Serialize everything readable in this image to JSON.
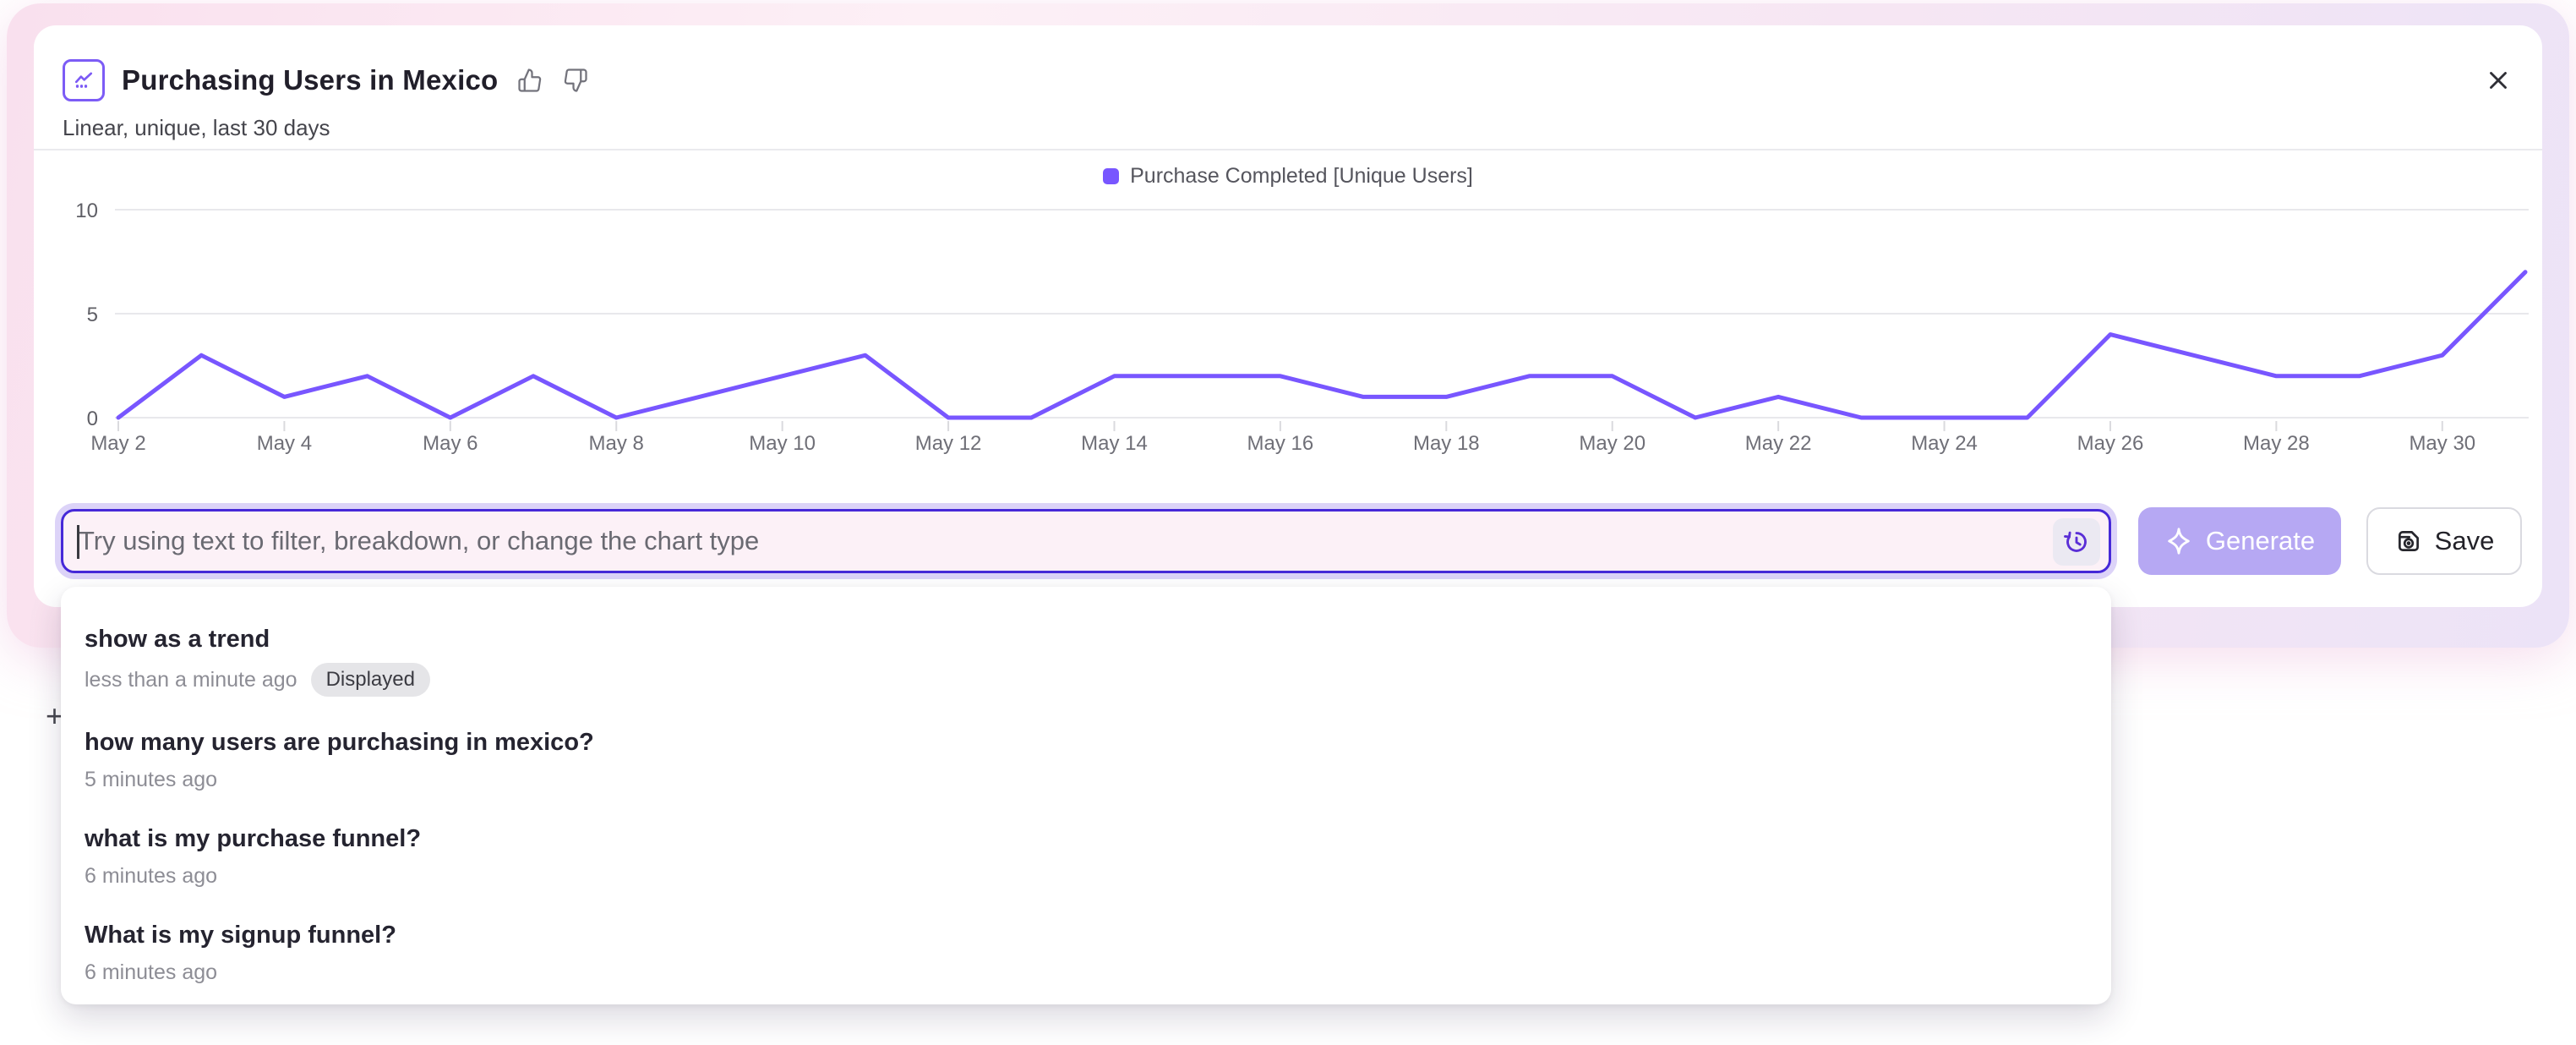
{
  "header": {
    "title": "Purchasing Users in Mexico",
    "subtitle": "Linear, unique, last 30 days"
  },
  "legend": {
    "label": "Purchase Completed [Unique Users]",
    "color": "#7856ff"
  },
  "chart_data": {
    "type": "line",
    "title": "Purchasing Users in Mexico",
    "x_labels": [
      "May 2",
      "May 3",
      "May 4",
      "May 5",
      "May 6",
      "May 7",
      "May 8",
      "May 9",
      "May 10",
      "May 11",
      "May 12",
      "May 13",
      "May 14",
      "May 15",
      "May 16",
      "May 17",
      "May 18",
      "May 19",
      "May 20",
      "May 21",
      "May 22",
      "May 23",
      "May 24",
      "May 25",
      "May 26",
      "May 27",
      "May 28",
      "May 29",
      "May 30",
      "May 31"
    ],
    "tick_every": 2,
    "y_ticks": [
      0,
      5,
      10
    ],
    "ylim": [
      0,
      10
    ],
    "grid": true,
    "legend_position": "top-center",
    "series": [
      {
        "name": "Purchase Completed [Unique Users]",
        "color": "#7856ff",
        "values": [
          0,
          3,
          1,
          2,
          0,
          2,
          0,
          1,
          2,
          3,
          0,
          0,
          2,
          2,
          2,
          1,
          1,
          2,
          2,
          0,
          1,
          0,
          0,
          0,
          4,
          3,
          2,
          2,
          3,
          7
        ]
      }
    ]
  },
  "prompt_bar": {
    "placeholder": "Try using text to filter, breakdown, or change the chart type",
    "generate_label": "Generate",
    "save_label": "Save"
  },
  "suggestions": [
    {
      "title": "show as a trend",
      "time": "less than a minute ago",
      "badge": "Displayed"
    },
    {
      "title": "how many users are purchasing in mexico?",
      "time": "5 minutes ago"
    },
    {
      "title": "what is my purchase funnel?",
      "time": "6 minutes ago"
    },
    {
      "title": "What is my signup funnel?",
      "time": "6 minutes ago"
    }
  ],
  "stray_plus": "+",
  "colors": {
    "accent": "#7856ff",
    "input_border": "#4629d8",
    "focus_ring": "#dcd3f8",
    "input_bg": "#fcf1f7",
    "generate_bg": "#b6a8f3",
    "grid_line": "#e8e8ec",
    "badge_bg": "#e5e5e8"
  }
}
